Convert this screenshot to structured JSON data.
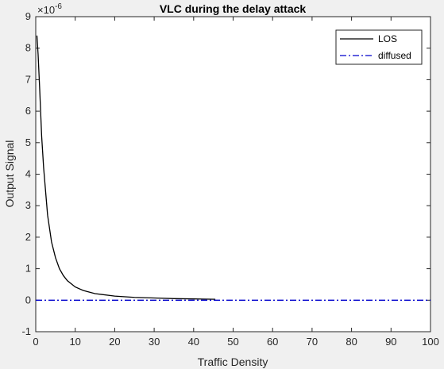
{
  "chart_data": {
    "type": "line",
    "title": "VLC during the delay attack",
    "xlabel": "Traffic Density",
    "ylabel": "Output Signal",
    "y_exponent_label": "×10",
    "y_exponent_power": "-6",
    "xlim": [
      0,
      100
    ],
    "ylim": [
      -1,
      9
    ],
    "y_scale_factor": 1e-06,
    "xticks": [
      "0",
      "10",
      "20",
      "30",
      "40",
      "50",
      "60",
      "70",
      "80",
      "90",
      "100"
    ],
    "yticks": [
      "-1",
      "0",
      "1",
      "2",
      "3",
      "4",
      "5",
      "6",
      "7",
      "8",
      "9"
    ],
    "grid": false,
    "legend_position": "top-right",
    "series": [
      {
        "name": "LOS",
        "color": "#000000",
        "style": "solid",
        "x": [
          0.3,
          0.6,
          1,
          1.5,
          2,
          3,
          4,
          5,
          6,
          7,
          8,
          10,
          12,
          15,
          20,
          25,
          30,
          35,
          40,
          45.5
        ],
        "y": [
          8.4,
          7.8,
          6.7,
          5.2,
          4.2,
          2.7,
          1.85,
          1.35,
          1.0,
          0.78,
          0.62,
          0.42,
          0.31,
          0.21,
          0.13,
          0.09,
          0.07,
          0.05,
          0.04,
          0.03
        ]
      },
      {
        "name": "diffused",
        "color": "#0000cc",
        "style": "dashdot",
        "x": [
          0,
          100
        ],
        "y": [
          0.0,
          0.0
        ]
      }
    ]
  }
}
